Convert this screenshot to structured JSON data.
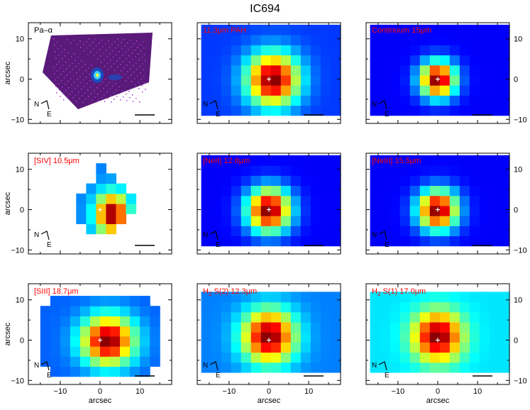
{
  "figure": {
    "title": "IC694",
    "xlabel": "arcsec",
    "ylabel": "arcsec",
    "x_ticks": [
      "−10",
      "0",
      "10"
    ],
    "y_ticks": [
      "10",
      "0",
      "−10"
    ],
    "compass_north": "N",
    "compass_east": "E",
    "label_color": "#ff0000",
    "label_color_first": "#000000"
  },
  "panels": [
    {
      "id": "pa-alpha",
      "label": "Pa–α",
      "kind": "image",
      "compass": true
    },
    {
      "id": "pah-11",
      "label": "11.3μm PAH",
      "kind": "map",
      "compass": true
    },
    {
      "id": "continuum-15",
      "label": "Continuum 15μm",
      "kind": "map",
      "compass": true
    },
    {
      "id": "siv",
      "label": "[SIV] 10.5μm",
      "kind": "map",
      "compass": true
    },
    {
      "id": "neii",
      "label": "[NeII] 12.8μm",
      "kind": "map",
      "compass": true
    },
    {
      "id": "neiii",
      "label": "[NeIII] 15.5μm",
      "kind": "map",
      "compass": true
    },
    {
      "id": "siii",
      "label": "[SIII] 18.7μm",
      "kind": "map",
      "compass": true
    },
    {
      "id": "h2-s2",
      "label_main": "H",
      "label_sub": "2",
      "label_rest": " S(2) 12.3μm",
      "kind": "map",
      "compass": true
    },
    {
      "id": "h2-s1",
      "label_main": "H",
      "label_sub": "2",
      "label_rest": " S(1) 17.0μm",
      "kind": "map",
      "compass": true
    }
  ]
}
